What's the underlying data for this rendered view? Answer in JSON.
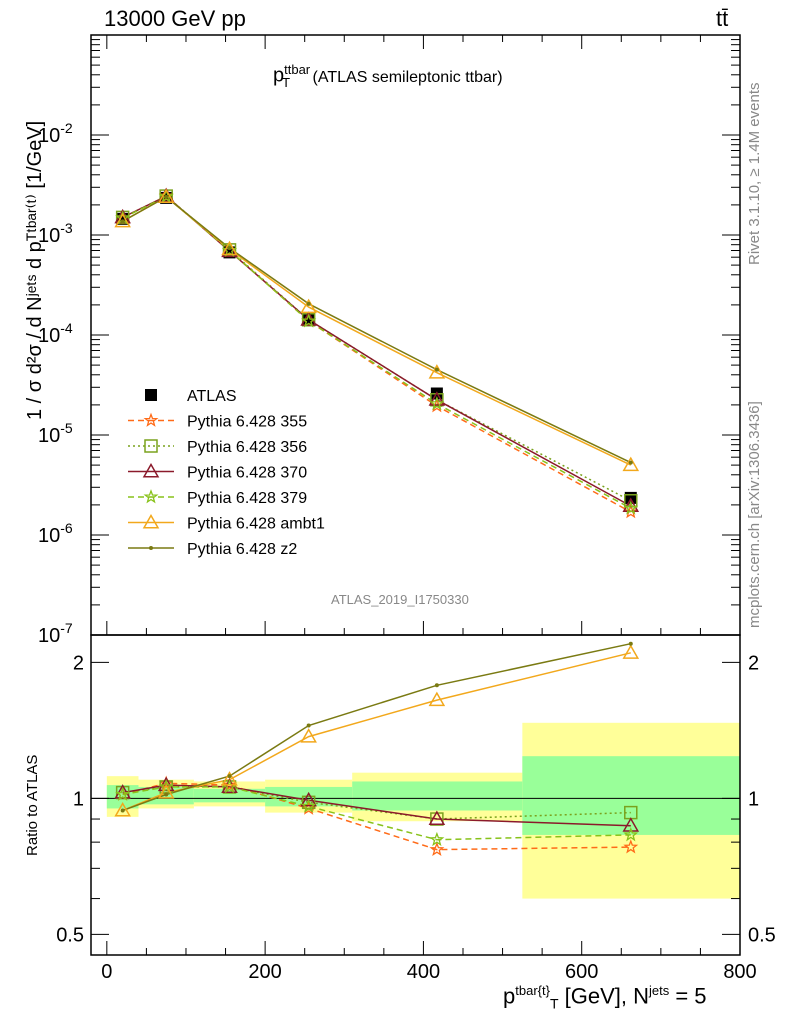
{
  "header": {
    "energy_label": "13000 GeV pp",
    "process_label": "tt̄"
  },
  "side_labels": {
    "rivet": "Rivet 3.1.10, ≥ 1.4M events",
    "mcplots": "mcplots.cern.ch [arXiv:1306.3436]"
  },
  "watermark": "ATLAS_2019_I1750330",
  "colors": {
    "data": "#000000",
    "p355": "#ff6b18",
    "p356": "#7aa21d",
    "p370": "#8b1a2b",
    "p379": "#88c21a",
    "ambt1": "#f2a81c",
    "z2": "#7a7a12",
    "band_yellow": "#ffff99",
    "band_green": "#99ff99"
  },
  "chart_data": [
    {
      "type": "line",
      "title_main": "p",
      "title_sup": "ttbar",
      "title_sub": "T",
      "title_rest": " (ATLAS semileptonic ttbar)",
      "ylabel": "1 / σ d²σ / d Nʲᵉᵗˢ d pᵀᵗᵇᵃʳ⁽ᵗ⁾ [1/GeV]",
      "yscale": "log",
      "ylim": [
        1e-07,
        0.1
      ],
      "xlim": [
        -20,
        800
      ],
      "ytick_labels": [
        {
          "base": "10",
          "exp": "-2"
        },
        {
          "base": "10",
          "exp": "-3"
        },
        {
          "base": "10",
          "exp": "-4"
        },
        {
          "base": "10",
          "exp": "-5"
        },
        {
          "base": "10",
          "exp": "-6"
        },
        {
          "base": "10",
          "exp": "-7"
        }
      ],
      "legend_position": "middle-left",
      "x": [
        20,
        75,
        155,
        255,
        417,
        662
      ],
      "series": [
        {
          "name": "ATLAS",
          "key": "data",
          "marker": "square",
          "values": [
            0.00145,
            0.00235,
            0.00067,
            0.000145,
            2.6e-05,
            2.35e-06
          ]
        },
        {
          "name": "Pythia 6.428 355",
          "key": "p355",
          "marker": "star",
          "line": "dashed",
          "values": [
            0.00148,
            0.00245,
            0.0007,
            0.000138,
            1.95e-05,
            1.7e-06
          ]
        },
        {
          "name": "Pythia 6.428 356",
          "key": "p356",
          "marker": "open-square",
          "line": "dotted",
          "values": [
            0.0015,
            0.00245,
            0.00071,
            0.000142,
            2.25e-05,
            2.2e-06
          ]
        },
        {
          "name": "Pythia 6.428 370",
          "key": "p370",
          "marker": "open-triangle",
          "line": "solid",
          "values": [
            0.0015,
            0.00245,
            0.00069,
            0.000142,
            2.25e-05,
            1.95e-06
          ]
        },
        {
          "name": "Pythia 6.428 379",
          "key": "p379",
          "marker": "star",
          "line": "dashed",
          "values": [
            0.00148,
            0.00242,
            0.0007,
            0.000138,
            2.05e-05,
            1.85e-06
          ]
        },
        {
          "name": "Pythia 6.428 ambt1",
          "key": "ambt1",
          "marker": "open-triangle",
          "line": "solid",
          "values": [
            0.00137,
            0.0024,
            0.00072,
            0.00019,
            4.2e-05,
            5e-06
          ]
        },
        {
          "name": "Pythia 6.428 z2",
          "key": "z2",
          "marker": "dot",
          "line": "solid",
          "values": [
            0.00137,
            0.0024,
            0.00074,
            0.000205,
            4.5e-05,
            5.3e-06
          ]
        }
      ]
    },
    {
      "type": "line",
      "ylabel": "Ratio to ATLAS",
      "xlabel_main": "p",
      "xlabel_sup": "tbar{t}",
      "xlabel_sub": "T",
      "xlabel_units": " [GeV], N",
      "xlabel_sup2": "jets",
      "xlabel_end": " = 5",
      "ylim": [
        0.45,
        2.3
      ],
      "xlim": [
        -20,
        800
      ],
      "yticks": [
        0.5,
        1,
        2
      ],
      "ytick_labels": [
        "0.5",
        "1",
        "2"
      ],
      "xticks": [
        0,
        200,
        400,
        600,
        800
      ],
      "xtick_labels": [
        "0",
        "200",
        "400",
        "600",
        "800"
      ],
      "bins": [
        {
          "x0": 0,
          "x1": 40,
          "yellow": [
            0.91,
            1.12
          ],
          "green": [
            0.95,
            1.07
          ]
        },
        {
          "x0": 40,
          "x1": 110,
          "yellow": [
            0.95,
            1.1
          ],
          "green": [
            0.97,
            1.06
          ]
        },
        {
          "x0": 110,
          "x1": 200,
          "yellow": [
            0.96,
            1.09
          ],
          "green": [
            0.98,
            1.05
          ]
        },
        {
          "x0": 200,
          "x1": 310,
          "yellow": [
            0.93,
            1.1
          ],
          "green": [
            0.96,
            1.06
          ]
        },
        {
          "x0": 310,
          "x1": 525,
          "yellow": [
            0.89,
            1.14
          ],
          "green": [
            0.94,
            1.09
          ]
        },
        {
          "x0": 525,
          "x1": 800,
          "yellow": [
            0.6,
            1.47
          ],
          "green": [
            0.83,
            1.24
          ]
        }
      ],
      "x": [
        20,
        75,
        155,
        255,
        417,
        662
      ],
      "series": [
        {
          "name": "Pythia 6.428 355",
          "key": "p355",
          "marker": "star",
          "line": "dashed",
          "values": [
            1.02,
            1.08,
            1.07,
            0.95,
            0.77,
            0.78
          ]
        },
        {
          "name": "Pythia 6.428 356",
          "key": "p356",
          "marker": "open-square",
          "line": "dotted",
          "values": [
            1.03,
            1.06,
            1.06,
            0.98,
            0.9,
            0.93
          ]
        },
        {
          "name": "Pythia 6.428 370",
          "key": "p370",
          "marker": "open-triangle",
          "line": "solid",
          "values": [
            1.03,
            1.07,
            1.06,
            0.99,
            0.9,
            0.87
          ]
        },
        {
          "name": "Pythia 6.428 379",
          "key": "p379",
          "marker": "star",
          "line": "dashed",
          "values": [
            1.02,
            1.06,
            1.06,
            0.96,
            0.81,
            0.83
          ]
        },
        {
          "name": "Pythia 6.428 ambt1",
          "key": "ambt1",
          "marker": "open-triangle",
          "line": "solid",
          "values": [
            0.94,
            1.03,
            1.1,
            1.37,
            1.65,
            2.1
          ]
        },
        {
          "name": "Pythia 6.428 z2",
          "key": "z2",
          "marker": "dot",
          "line": "solid",
          "values": [
            0.94,
            1.02,
            1.12,
            1.45,
            1.78,
            2.2
          ]
        }
      ]
    }
  ]
}
